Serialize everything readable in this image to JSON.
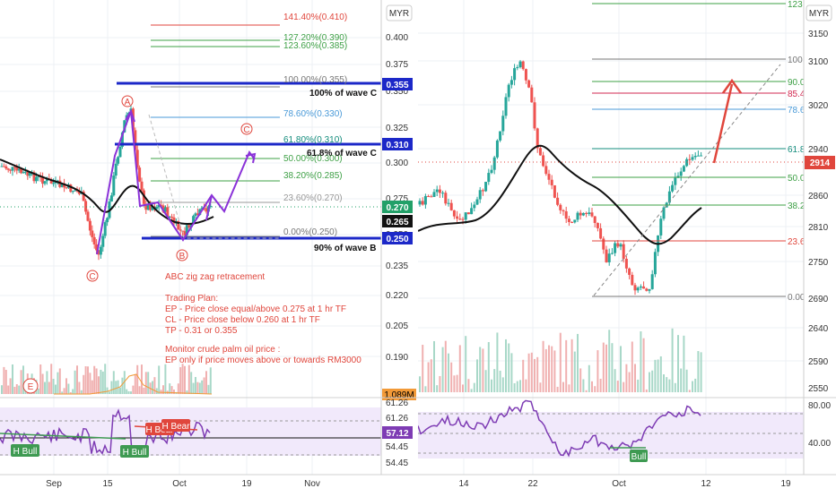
{
  "left_panel": {
    "currency": "MYR",
    "price_axis_ticks": [
      "0.400",
      "0.375",
      "0.350",
      "0.325",
      "0.300",
      "0.275",
      "0.250",
      "0.235",
      "0.220",
      "0.205",
      "0.190"
    ],
    "price_axis_badges": [
      {
        "text": "0.355",
        "bg": "#1c28c8",
        "fg": "#ffffff"
      },
      {
        "text": "0.310",
        "bg": "#1c28c8",
        "fg": "#ffffff"
      },
      {
        "text": "0.270",
        "bg": "#22a068",
        "fg": "#ffffff"
      },
      {
        "text": "0.265",
        "bg": "#111111",
        "fg": "#ffffff"
      },
      {
        "text": "0.250",
        "bg": "#1c28c8",
        "fg": "#ffffff"
      },
      {
        "text": "1.089M",
        "bg": "#f29a38",
        "fg": "#000000"
      }
    ],
    "fib_levels": [
      {
        "label": "141.40%(0.410)",
        "color": "#e0463c"
      },
      {
        "label": "127.20%(0.390)",
        "color": "#3ea046"
      },
      {
        "label": "123.60%(0.385)",
        "color": "#3ea046"
      },
      {
        "label": "100.00%(0.355)",
        "color": "#777777"
      },
      {
        "label": "78.60%(0.330)",
        "color": "#4a9ad8"
      },
      {
        "label": "61.80%(0.310)",
        "color": "#138c7c"
      },
      {
        "label": "50.00%(0.300)",
        "color": "#3ea046"
      },
      {
        "label": "38.20%(0.285)",
        "color": "#3ea046"
      },
      {
        "label": "23.60%(0.270)",
        "color": "#999999"
      },
      {
        "label": "0.00%(0.250)",
        "color": "#777777"
      }
    ],
    "wave_labels": [
      "100% of wave C",
      "61.8% of wave C",
      "90% of wave B"
    ],
    "wave_points": [
      "A",
      "B",
      "C",
      "C"
    ],
    "volume_marker": "E",
    "notes": [
      "ABC zig zag retracement",
      "Trading Plan:",
      "EP -  Price close equal/above 0.275 at 1 hr TF",
      "CL - Price close below 0.260 at 1 hr TF",
      "TP - 0.31 or 0.355",
      "Monitor crude palm oil price :",
      "EP only if price moves above or towards RM3000"
    ],
    "rsi_axis_ticks": [
      "61.26",
      "61.26",
      "57.12",
      "54.45",
      "54.45"
    ],
    "rsi_badges": [
      {
        "text": "57.12",
        "bg": "#7e3cb4",
        "fg": "#ffffff"
      }
    ],
    "rsi_labels": [
      {
        "text": "H Bull",
        "color": "#3e9a52"
      },
      {
        "text": "H Bull",
        "color": "#3e9a52"
      },
      {
        "text": "H Bear",
        "color": "#e0463c"
      },
      {
        "text": "H Bear",
        "color": "#e0463c"
      }
    ],
    "time_axis": [
      "Sep",
      "15",
      "Oct",
      "19",
      "Nov"
    ]
  },
  "right_panel": {
    "currency": "MYR",
    "top_fib_label": "123",
    "price_axis_ticks": [
      "3150",
      "3100",
      "3020",
      "2940",
      "2860",
      "2810",
      "2750",
      "2690",
      "2640",
      "2590",
      "2550"
    ],
    "price_axis_badges": [
      {
        "text": "2914",
        "bg": "#e0463c",
        "fg": "#ffffff"
      }
    ],
    "fib_labels": [
      {
        "text": "100",
        "color": "#777777"
      },
      {
        "text": "90.0",
        "color": "#3ea046"
      },
      {
        "text": "85.4",
        "color": "#d22850"
      },
      {
        "text": "78.6",
        "color": "#4a9ad8"
      },
      {
        "text": "61.8",
        "color": "#138c7c"
      },
      {
        "text": "50.0",
        "color": "#3ea046"
      },
      {
        "text": "38.2",
        "color": "#3ea046"
      },
      {
        "text": "23.6",
        "color": "#e0463c"
      },
      {
        "text": "0.00",
        "color": "#777777"
      }
    ],
    "rsi_axis_ticks": [
      "80.00",
      "40.00"
    ],
    "rsi_labels": [
      {
        "text": "Bull",
        "color": "#3e9a52"
      }
    ],
    "time_axis": [
      "14",
      "22",
      "Oct",
      "12",
      "19"
    ]
  },
  "chart_data": [
    {
      "type": "candlestick",
      "currency": "MYR",
      "y_range": [
        0.18,
        0.415
      ],
      "fib_retracement": [
        {
          "ratio": "141.40%",
          "price": 0.41
        },
        {
          "ratio": "127.20%",
          "price": 0.39
        },
        {
          "ratio": "123.60%",
          "price": 0.385
        },
        {
          "ratio": "100.00%",
          "price": 0.355
        },
        {
          "ratio": "78.60%",
          "price": 0.33
        },
        {
          "ratio": "61.80%",
          "price": 0.31
        },
        {
          "ratio": "50.00%",
          "price": 0.3
        },
        {
          "ratio": "38.20%",
          "price": 0.285
        },
        {
          "ratio": "23.60%",
          "price": 0.27
        },
        {
          "ratio": "0.00%",
          "price": 0.25
        }
      ],
      "targets": [
        0.355,
        0.31
      ],
      "support": 0.25,
      "last_price": 0.27,
      "moving_average": 0.265,
      "volume_last": "1.089M",
      "rsi_last": 57.12
    },
    {
      "type": "candlestick",
      "currency": "MYR",
      "y_range": [
        2545,
        3175
      ],
      "last_price": 2914,
      "rsi_range": [
        25,
        85
      ]
    }
  ]
}
